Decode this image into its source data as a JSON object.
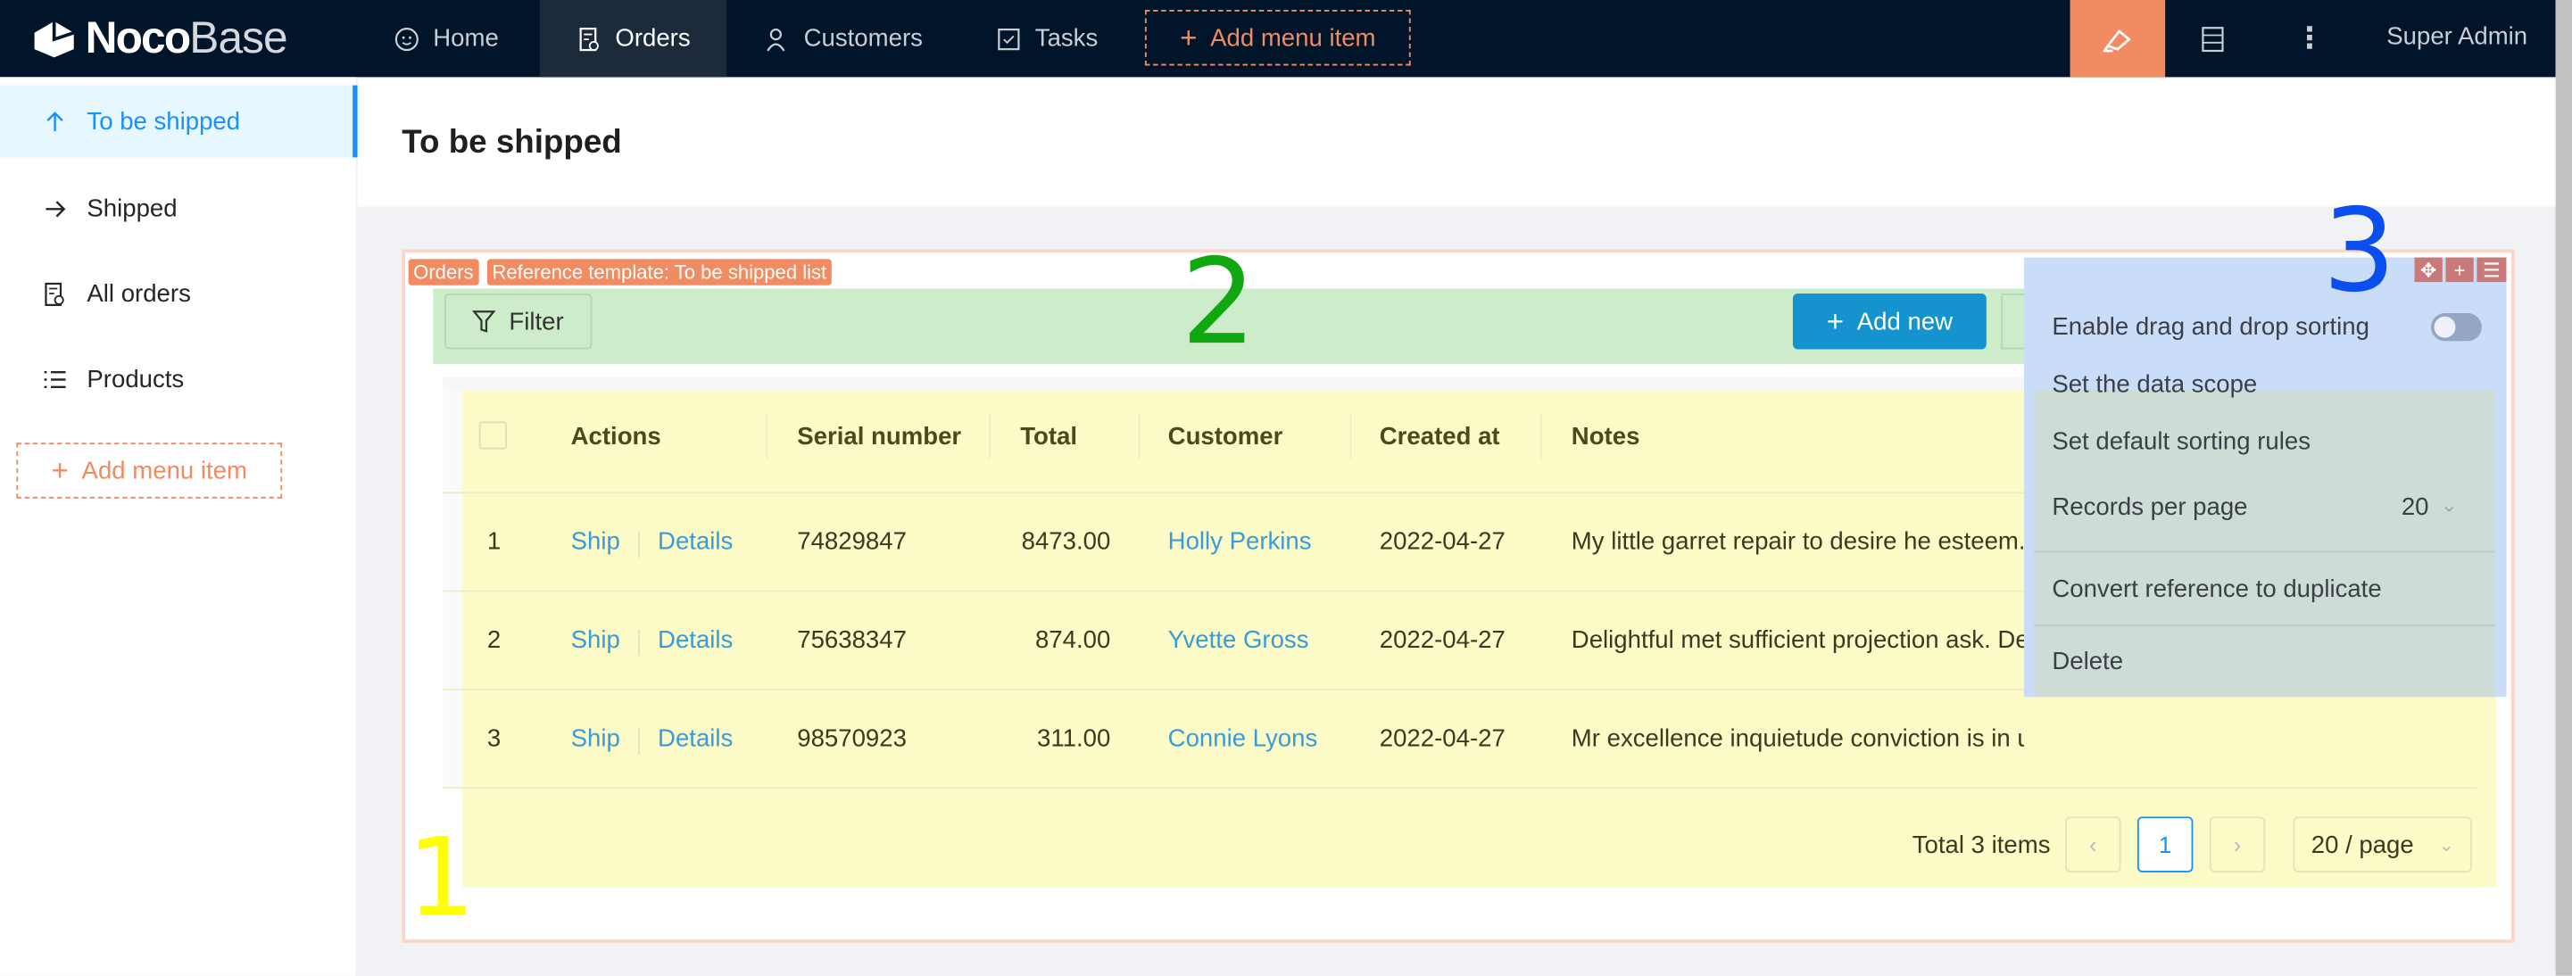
{
  "header": {
    "logo_bold": "Noco",
    "logo_light": "Base",
    "nav": [
      {
        "label": "Home",
        "icon": "smile-icon"
      },
      {
        "label": "Orders",
        "icon": "file-check-icon",
        "active": true
      },
      {
        "label": "Customers",
        "icon": "users-icon"
      },
      {
        "label": "Tasks",
        "icon": "checkbox-icon"
      }
    ],
    "add_menu_item": "Add menu item",
    "user": "Super Admin",
    "accent": "#f18b62"
  },
  "sidebar": {
    "items": [
      {
        "label": "To be shipped",
        "icon": "arrow-up-icon",
        "active": true
      },
      {
        "label": "Shipped",
        "icon": "arrow-right-icon"
      },
      {
        "label": "All orders",
        "icon": "file-check-icon"
      },
      {
        "label": "Products",
        "icon": "list-icon"
      }
    ],
    "add_menu_item": "Add menu item"
  },
  "page": {
    "title": "To be shipped"
  },
  "block": {
    "tags": [
      "Orders",
      "Reference template: To be shipped list"
    ],
    "filter_label": "Filter",
    "add_new_label": "Add new",
    "columns": [
      "Actions",
      "Serial number",
      "Total",
      "Customer",
      "Created at",
      "Notes"
    ],
    "rows": [
      {
        "index": "1",
        "ship": "Ship",
        "details": "Details",
        "serial": "74829847",
        "total": "8473.00",
        "customer": "Holly Perkins",
        "created": "2022-04-27",
        "notes": "My little garret repair to desire he esteem."
      },
      {
        "index": "2",
        "ship": "Ship",
        "details": "Details",
        "serial": "75638347",
        "total": "874.00",
        "customer": "Yvette Gross",
        "created": "2022-04-27",
        "notes": "Delightful met sufficient projection ask. Decisively"
      },
      {
        "index": "3",
        "ship": "Ship",
        "details": "Details",
        "serial": "98570923",
        "total": "311.00",
        "customer": "Connie Lyons",
        "created": "2022-04-27",
        "notes": "Mr excellence inquietude conviction is in u..."
      }
    ],
    "pagination": {
      "total": "Total 3 items",
      "current": "1",
      "page_size": "20 / page"
    }
  },
  "annotations": {
    "one": "1",
    "two": "2",
    "three": "3"
  },
  "settings_menu": {
    "items": {
      "drag_sort": "Enable drag and drop sorting",
      "data_scope": "Set the data scope",
      "default_sort": "Set default sorting rules",
      "records_per_page": "Records per page",
      "records_value": "20",
      "convert": "Convert reference to duplicate",
      "delete": "Delete"
    },
    "drag_sort_enabled": false
  }
}
